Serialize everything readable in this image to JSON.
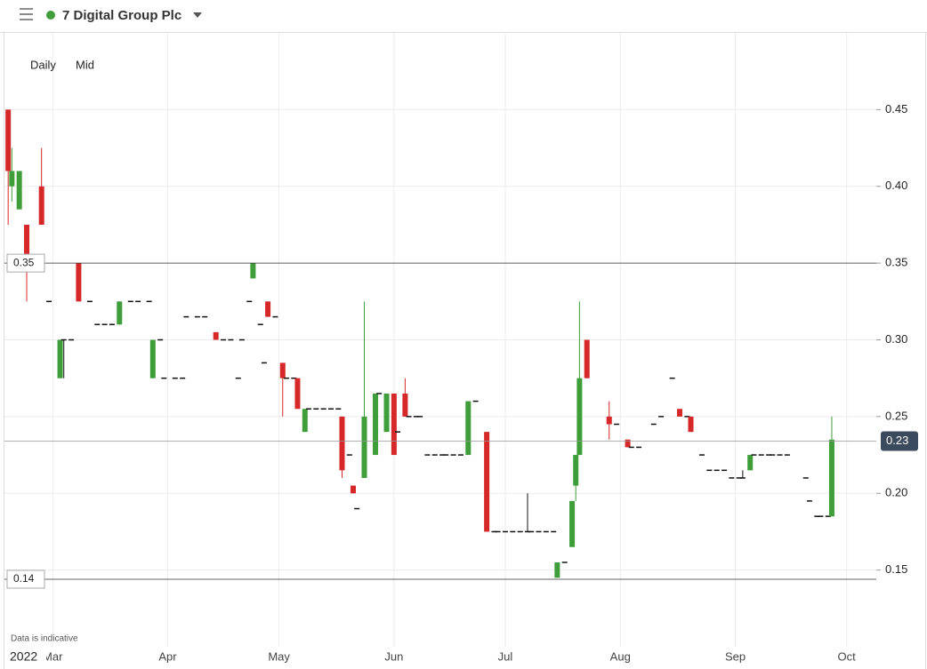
{
  "chart_data": {
    "type": "candlestick",
    "title": "7 Digital Group Plc",
    "interval": "Daily",
    "price_type": "Mid",
    "note": "Data is indicative",
    "year_label": "2022",
    "up_color": "#3f9e3a",
    "down_color": "#d62828",
    "flat_color": "#111111",
    "grid": true,
    "xlim": [
      47,
      282
    ],
    "ylim": [
      0.1,
      0.5
    ],
    "xticks": [
      {
        "value": 60,
        "label": "Mar"
      },
      {
        "value": 91,
        "label": "Apr"
      },
      {
        "value": 121,
        "label": "May"
      },
      {
        "value": 152,
        "label": "Jun"
      },
      {
        "value": 182,
        "label": "Jul"
      },
      {
        "value": 213,
        "label": "Aug"
      },
      {
        "value": 244,
        "label": "Sep"
      },
      {
        "value": 274,
        "label": "Oct"
      }
    ],
    "yticks": [
      0.15,
      {
        "value": 0.2,
        "label": "0.20"
      },
      0.25,
      {
        "value": 0.3,
        "label": "0.30"
      },
      0.35,
      {
        "value": 0.4,
        "label": "0.40"
      },
      0.45
    ],
    "reference_lines": [
      0.35,
      {
        "value": 0.144,
        "label": "0.14"
      }
    ],
    "last_price": {
      "value": 0.234,
      "label": "0.23"
    },
    "x": [
      48,
      49,
      51,
      53,
      57,
      59,
      62,
      63,
      65,
      67,
      70,
      72,
      74,
      76,
      78,
      81,
      83,
      86,
      87,
      89,
      90,
      93,
      95,
      96,
      99,
      101,
      104,
      106,
      108,
      110,
      111,
      113,
      114,
      116,
      117,
      118,
      120,
      122,
      123,
      125,
      126,
      128,
      129,
      131,
      133,
      135,
      137,
      138,
      140,
      141,
      142,
      144,
      147,
      148,
      150,
      152,
      153,
      155,
      156,
      158,
      159,
      161,
      163,
      165,
      166,
      168,
      170,
      172,
      174,
      177,
      179,
      180,
      182,
      184,
      186,
      188,
      189,
      191,
      193,
      195,
      196,
      198,
      200,
      201,
      202,
      204,
      210,
      212,
      215,
      216,
      218,
      222,
      224,
      227,
      229,
      231,
      232,
      235,
      237,
      239,
      241,
      243,
      245,
      246,
      248,
      249,
      251,
      253,
      254,
      256,
      258,
      263,
      264,
      266,
      267,
      269,
      270
    ],
    "open": [
      0.45,
      0.4,
      0.385,
      0.375,
      0.4,
      0.325,
      0.275,
      0.3,
      0.3,
      0.35,
      0.325,
      0.31,
      0.31,
      0.31,
      0.31,
      0.325,
      0.325,
      0.325,
      0.275,
      0.3,
      0.275,
      0.275,
      0.275,
      0.315,
      0.315,
      0.315,
      0.305,
      0.3,
      0.3,
      0.275,
      0.3,
      0.325,
      0.34,
      0.31,
      0.285,
      0.325,
      0.315,
      0.285,
      0.275,
      0.275,
      0.275,
      0.24,
      0.255,
      0.255,
      0.255,
      0.255,
      0.255,
      0.25,
      0.225,
      0.205,
      0.19,
      0.21,
      0.225,
      0.265,
      0.24,
      0.265,
      0.24,
      0.265,
      0.25,
      0.25,
      0.25,
      0.225,
      0.225,
      0.225,
      0.225,
      0.225,
      0.225,
      0.225,
      0.26,
      0.24,
      0.175,
      0.175,
      0.175,
      0.175,
      0.175,
      0.175,
      0.175,
      0.175,
      0.175,
      0.175,
      0.145,
      0.155,
      0.165,
      0.205,
      0.225,
      0.3,
      0.25,
      0.245,
      0.235,
      0.23,
      0.23,
      0.245,
      0.25,
      0.275,
      0.255,
      0.25,
      0.25,
      0.225,
      0.215,
      0.215,
      0.215,
      0.21,
      0.21,
      0.21,
      0.215,
      0.225,
      0.225,
      0.225,
      0.225,
      0.225,
      0.225,
      0.21,
      0.195,
      0.185,
      0.185,
      0.185,
      0.185
    ],
    "high": [
      0.45,
      0.425,
      0.41,
      0.375,
      0.425,
      0.325,
      0.3,
      0.3,
      0.3,
      0.35,
      0.325,
      0.31,
      0.31,
      0.31,
      0.325,
      0.325,
      0.325,
      0.325,
      0.3,
      0.3,
      0.275,
      0.275,
      0.275,
      0.315,
      0.315,
      0.315,
      0.305,
      0.3,
      0.3,
      0.275,
      0.3,
      0.325,
      0.35,
      0.31,
      0.285,
      0.325,
      0.315,
      0.285,
      0.275,
      0.275,
      0.275,
      0.255,
      0.255,
      0.255,
      0.255,
      0.255,
      0.255,
      0.25,
      0.225,
      0.205,
      0.19,
      0.325,
      0.265,
      0.265,
      0.265,
      0.265,
      0.24,
      0.275,
      0.25,
      0.25,
      0.25,
      0.225,
      0.225,
      0.225,
      0.225,
      0.225,
      0.225,
      0.26,
      0.26,
      0.24,
      0.175,
      0.175,
      0.175,
      0.175,
      0.175,
      0.2,
      0.175,
      0.175,
      0.175,
      0.175,
      0.155,
      0.155,
      0.195,
      0.225,
      0.325,
      0.3,
      0.26,
      0.245,
      0.235,
      0.23,
      0.23,
      0.245,
      0.25,
      0.275,
      0.255,
      0.25,
      0.25,
      0.225,
      0.215,
      0.215,
      0.215,
      0.21,
      0.21,
      0.215,
      0.225,
      0.225,
      0.225,
      0.225,
      0.225,
      0.225,
      0.225,
      0.21,
      0.195,
      0.185,
      0.185,
      0.185,
      0.25
    ],
    "low": [
      0.375,
      0.39,
      0.385,
      0.325,
      0.375,
      0.325,
      0.275,
      0.275,
      0.3,
      0.325,
      0.325,
      0.31,
      0.31,
      0.31,
      0.31,
      0.325,
      0.325,
      0.325,
      0.275,
      0.3,
      0.275,
      0.275,
      0.275,
      0.315,
      0.315,
      0.315,
      0.3,
      0.3,
      0.3,
      0.275,
      0.3,
      0.325,
      0.34,
      0.31,
      0.285,
      0.315,
      0.315,
      0.25,
      0.275,
      0.275,
      0.255,
      0.24,
      0.255,
      0.255,
      0.255,
      0.255,
      0.255,
      0.21,
      0.225,
      0.2,
      0.19,
      0.21,
      0.225,
      0.265,
      0.24,
      0.225,
      0.24,
      0.25,
      0.25,
      0.25,
      0.25,
      0.225,
      0.225,
      0.225,
      0.225,
      0.225,
      0.225,
      0.225,
      0.26,
      0.175,
      0.175,
      0.175,
      0.175,
      0.175,
      0.175,
      0.175,
      0.175,
      0.175,
      0.175,
      0.175,
      0.145,
      0.155,
      0.165,
      0.195,
      0.225,
      0.275,
      0.235,
      0.245,
      0.23,
      0.23,
      0.23,
      0.245,
      0.25,
      0.275,
      0.25,
      0.25,
      0.24,
      0.225,
      0.215,
      0.215,
      0.215,
      0.21,
      0.21,
      0.21,
      0.215,
      0.225,
      0.225,
      0.225,
      0.225,
      0.225,
      0.225,
      0.21,
      0.195,
      0.185,
      0.185,
      0.185,
      0.185
    ],
    "close": [
      0.41,
      0.41,
      0.41,
      0.35,
      0.375,
      0.325,
      0.3,
      0.3,
      0.3,
      0.325,
      0.325,
      0.31,
      0.31,
      0.31,
      0.325,
      0.325,
      0.325,
      0.325,
      0.3,
      0.3,
      0.275,
      0.275,
      0.275,
      0.315,
      0.315,
      0.315,
      0.3,
      0.3,
      0.3,
      0.275,
      0.3,
      0.325,
      0.35,
      0.31,
      0.285,
      0.315,
      0.315,
      0.275,
      0.275,
      0.275,
      0.255,
      0.255,
      0.255,
      0.255,
      0.255,
      0.255,
      0.255,
      0.215,
      0.225,
      0.2,
      0.19,
      0.25,
      0.265,
      0.265,
      0.265,
      0.225,
      0.24,
      0.25,
      0.25,
      0.25,
      0.25,
      0.225,
      0.225,
      0.225,
      0.225,
      0.225,
      0.225,
      0.26,
      0.26,
      0.175,
      0.175,
      0.175,
      0.175,
      0.175,
      0.175,
      0.175,
      0.175,
      0.175,
      0.175,
      0.175,
      0.155,
      0.155,
      0.195,
      0.225,
      0.275,
      0.275,
      0.245,
      0.245,
      0.23,
      0.23,
      0.23,
      0.245,
      0.25,
      0.275,
      0.25,
      0.25,
      0.24,
      0.225,
      0.215,
      0.215,
      0.215,
      0.21,
      0.21,
      0.21,
      0.225,
      0.225,
      0.225,
      0.225,
      0.225,
      0.225,
      0.225,
      0.21,
      0.195,
      0.185,
      0.185,
      0.185,
      0.235
    ]
  }
}
